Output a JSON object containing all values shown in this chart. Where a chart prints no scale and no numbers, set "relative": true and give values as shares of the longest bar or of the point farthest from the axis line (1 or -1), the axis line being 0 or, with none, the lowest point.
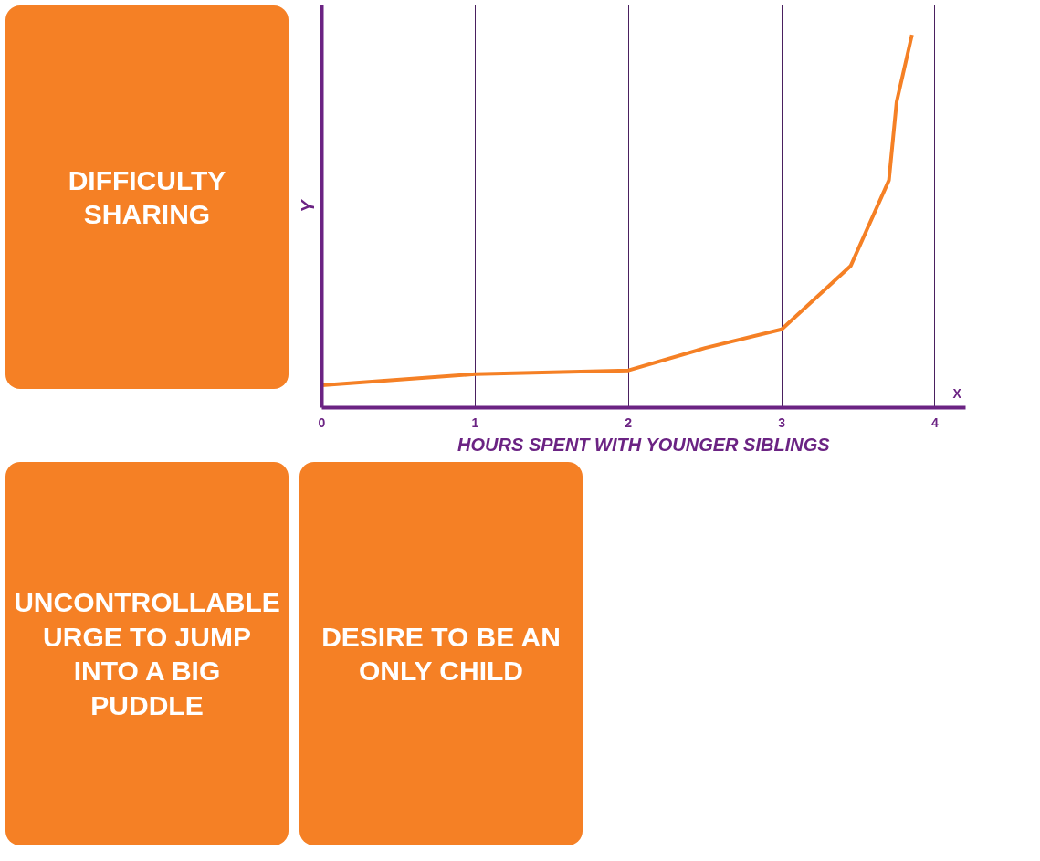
{
  "chart_data": {
    "type": "line",
    "relative": true,
    "xlabel": "HOURS SPENT WITH YOUNGER SIBLINGS",
    "ylabel": "Y",
    "x": [
      0,
      1,
      2,
      2.5,
      3,
      3.45,
      3.7,
      3.75,
      3.85
    ],
    "series": [
      {
        "color": "#f58025",
        "values": [
          0.06,
          0.09,
          0.1,
          0.16,
          0.21,
          0.38,
          0.61,
          0.82,
          1.0
        ]
      }
    ],
    "xlim": [
      0,
      4.2
    ],
    "xticks": [
      0,
      1,
      2,
      3,
      4
    ],
    "grid": "x",
    "tick_labels": "x",
    "annotations": [
      "X",
      "DIFFICULTY SHARING",
      "UNCONTROLLABLE URGE TO JUMP INTO A BIG PUDDLE",
      "DESIRE TO BE AN ONLY CHILD"
    ]
  }
}
